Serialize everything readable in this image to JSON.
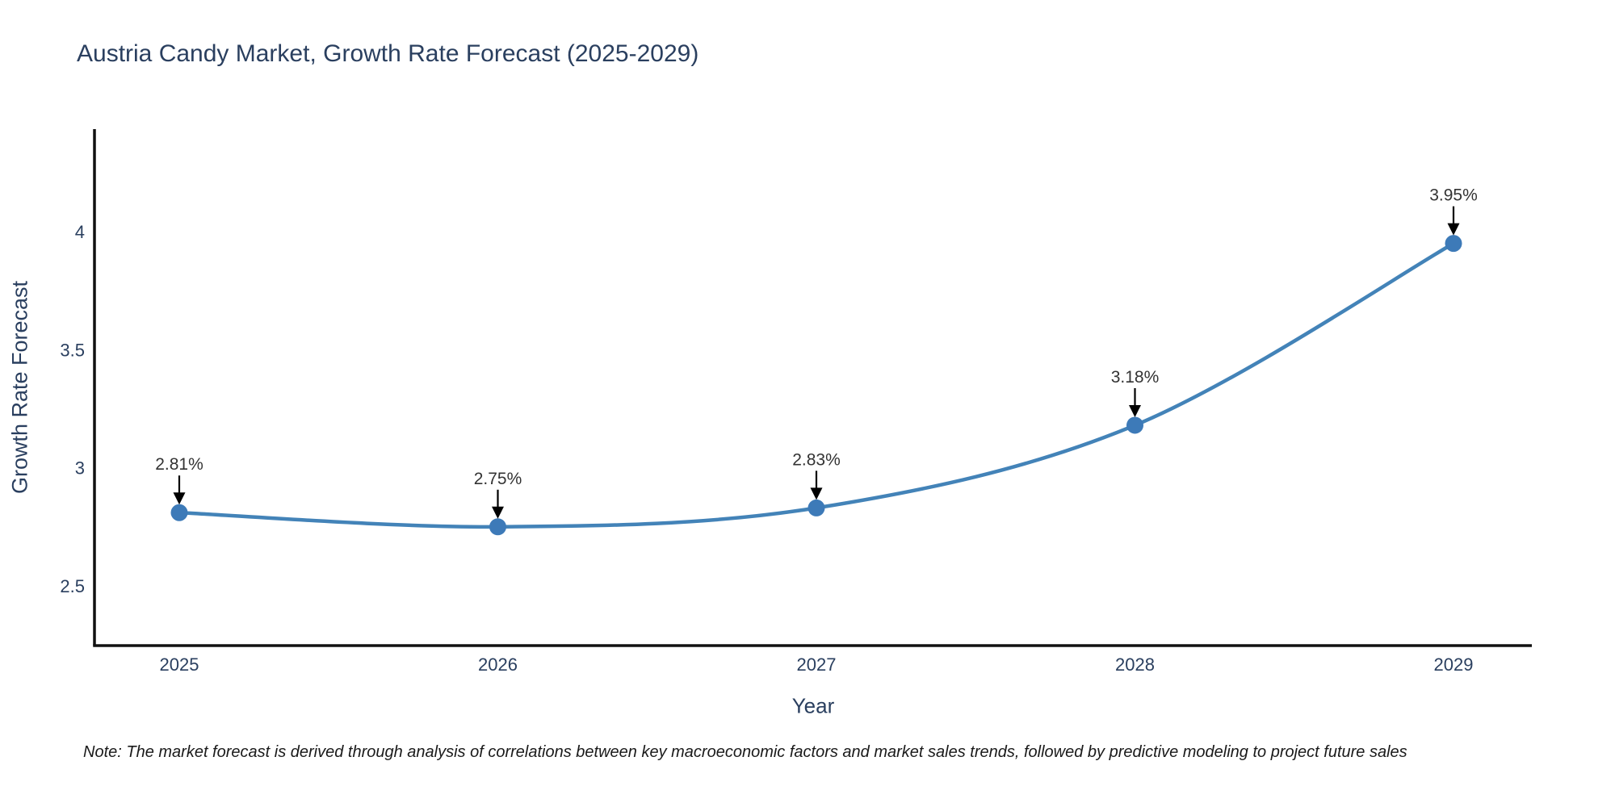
{
  "page": {
    "background": "#ffffff",
    "note": "Note: The market forecast is derived through analysis of correlations between key macroeconomic factors and market sales trends, followed by predictive modeling to project future sales"
  },
  "chart_data": {
    "type": "line",
    "title": "Austria Candy Market, Growth Rate Forecast (2025-2029)",
    "xlabel": "Year",
    "ylabel": "Growth Rate Forecast",
    "categories": [
      "2025",
      "2026",
      "2027",
      "2028",
      "2029"
    ],
    "values": [
      2.81,
      2.75,
      2.83,
      3.18,
      3.95
    ],
    "point_labels": [
      "2.81%",
      "2.75%",
      "2.83%",
      "3.18%",
      "3.95%"
    ],
    "series_name": "Growth Rate Forecast",
    "yticks": [
      2.5,
      3,
      3.5,
      4
    ],
    "ylim": [
      2.247,
      4.434
    ],
    "grid": false,
    "legend_position": "none",
    "line_smooth": true,
    "colors": {
      "line": "#4383b8",
      "marker": "#3d7ab8",
      "axis": "#111111",
      "tick_text": "#2a3f5f",
      "title_text": "#2a3f5f",
      "annotation_text": "#333333",
      "annotation_arrow": "#000000"
    }
  }
}
